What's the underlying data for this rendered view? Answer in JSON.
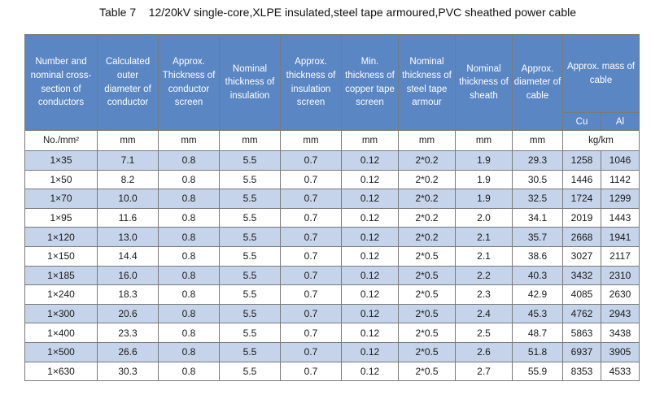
{
  "title": "Table 7    12/20kV single-core,XLPE insulated,steel tape armoured,PVC sheathed power cable",
  "headers": [
    "Number and nominal cross-section of conductors",
    "Calculated outer diameter of conductor",
    "Approx. Thickness of conductor screen",
    "Nominal thickness of insulation",
    "Approx. thickness of insulation screen",
    "Min. thickness of copper tape screen",
    "Nominal thickness of steel tape armour",
    "Nominal thickness of sheath",
    "Approx. diameter of cable",
    "Approx. mass of cable"
  ],
  "mass_subheaders": [
    "Cu",
    "Al"
  ],
  "units": [
    "No./mm²",
    "mm",
    "mm",
    "mm",
    "mm",
    "mm",
    "mm",
    "mm",
    "mm",
    "kg/km"
  ],
  "rows": [
    [
      "1×35",
      "7.1",
      "0.8",
      "5.5",
      "0.7",
      "0.12",
      "2*0.2",
      "1.9",
      "29.3",
      "1258",
      "1046"
    ],
    [
      "1×50",
      "8.2",
      "0.8",
      "5.5",
      "0.7",
      "0.12",
      "2*0.2",
      "1.9",
      "30.5",
      "1446",
      "1142"
    ],
    [
      "1×70",
      "10.0",
      "0.8",
      "5.5",
      "0.7",
      "0.12",
      "2*0.2",
      "1.9",
      "32.5",
      "1724",
      "1299"
    ],
    [
      "1×95",
      "11.6",
      "0.8",
      "5.5",
      "0.7",
      "0.12",
      "2*0.2",
      "2.0",
      "34.1",
      "2019",
      "1443"
    ],
    [
      "1×120",
      "13.0",
      "0.8",
      "5.5",
      "0.7",
      "0.12",
      "2*0.2",
      "2.1",
      "35.7",
      "2668",
      "1941"
    ],
    [
      "1×150",
      "14.4",
      "0.8",
      "5.5",
      "0.7",
      "0.12",
      "2*0.5",
      "2.1",
      "38.6",
      "3027",
      "2117"
    ],
    [
      "1×185",
      "16.0",
      "0.8",
      "5.5",
      "0.7",
      "0.12",
      "2*0.5",
      "2.2",
      "40.3",
      "3432",
      "2310"
    ],
    [
      "1×240",
      "18.3",
      "0.8",
      "5.5",
      "0.7",
      "0.12",
      "2*0.5",
      "2.3",
      "42.9",
      "4085",
      "2630"
    ],
    [
      "1×300",
      "20.6",
      "0.8",
      "5.5",
      "0.7",
      "0.12",
      "2*0.5",
      "2.4",
      "45.3",
      "4762",
      "2943"
    ],
    [
      "1×400",
      "23.3",
      "0.8",
      "5.5",
      "0.7",
      "0.12",
      "2*0.5",
      "2.5",
      "48.7",
      "5863",
      "3438"
    ],
    [
      "1×500",
      "26.6",
      "0.8",
      "5.5",
      "0.7",
      "0.12",
      "2*0.5",
      "2.6",
      "51.8",
      "6937",
      "3905"
    ],
    [
      "1×630",
      "30.3",
      "0.8",
      "5.5",
      "0.7",
      "0.12",
      "2*0.5",
      "2.7",
      "55.9",
      "8353",
      "4533"
    ]
  ],
  "colors": {
    "header_bg": "#5a86c4",
    "shaded_row_bg": "#c5d4ea",
    "border": "#7a7a7a"
  }
}
